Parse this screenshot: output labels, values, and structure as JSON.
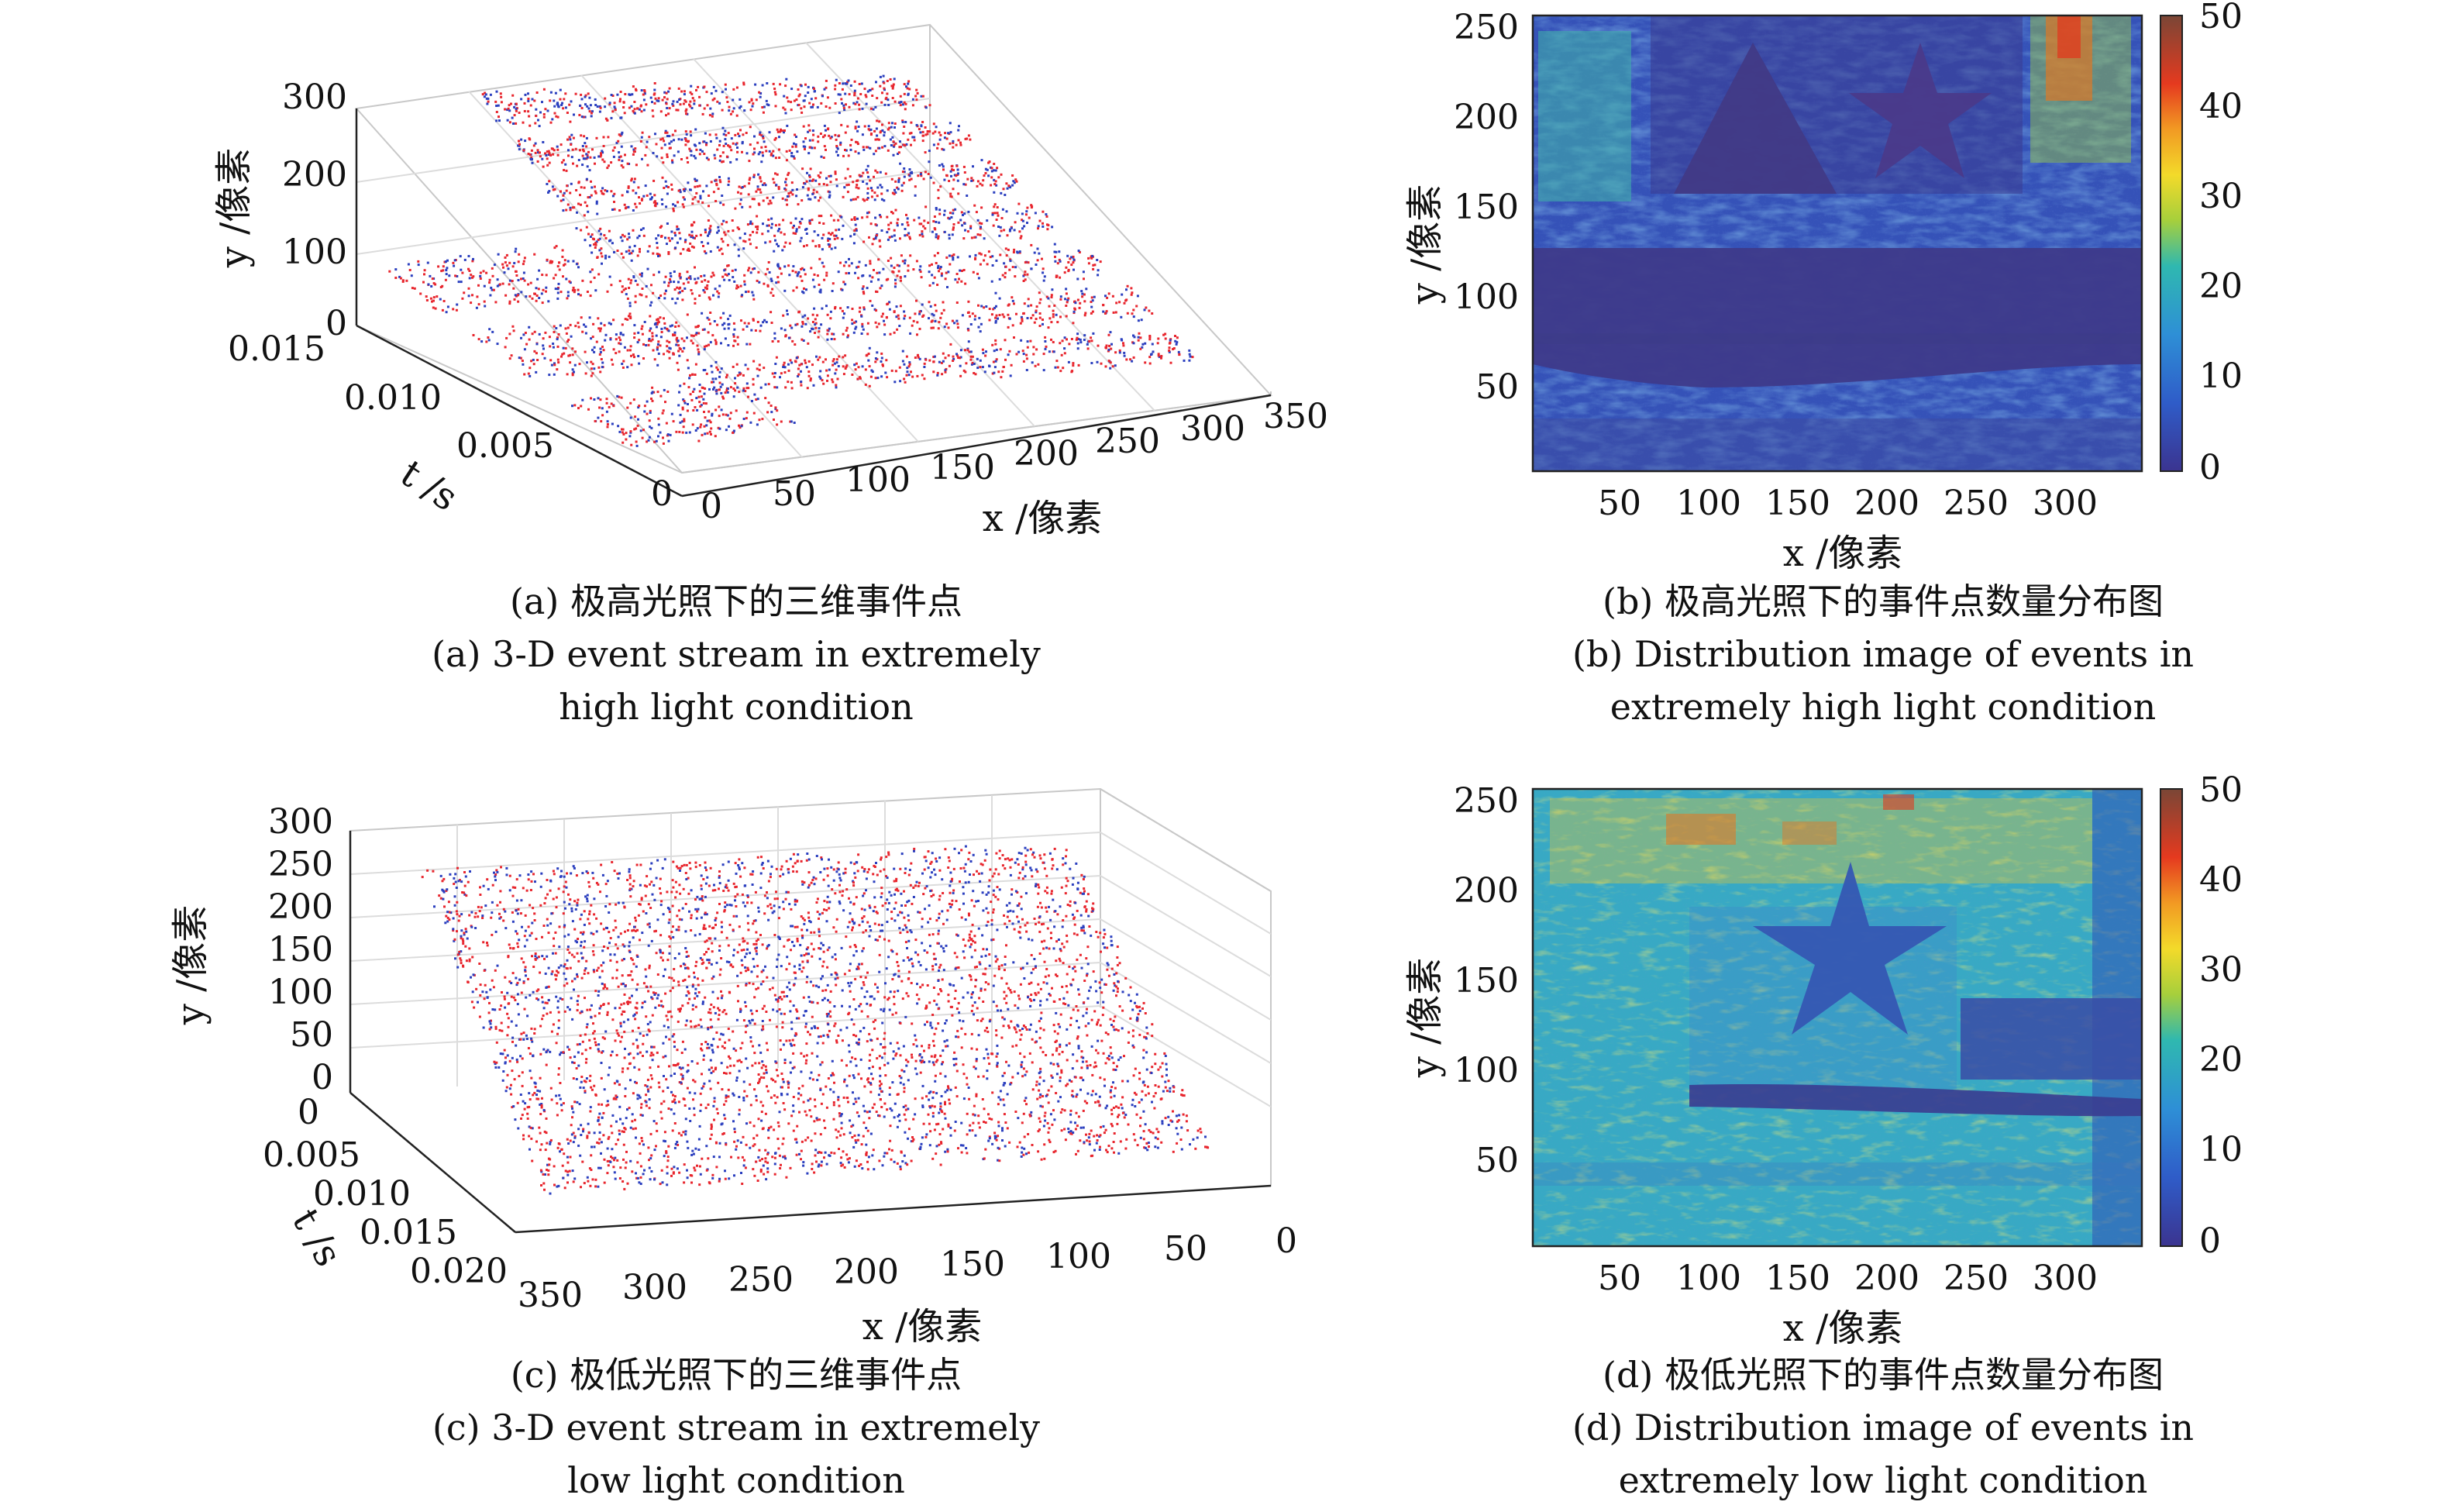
{
  "panels": {
    "a": {
      "caption_cn": "(a) 极高光照下的三维事件点",
      "caption_en_1": "(a) 3-D event stream in extremely",
      "caption_en_2": "high light condition"
    },
    "b": {
      "caption_cn": "(b) 极高光照下的事件点数量分布图",
      "caption_en_1": "(b) Distribution image of events in",
      "caption_en_2": "extremely high light condition"
    },
    "c": {
      "caption_cn": "(c) 极低光照下的三维事件点",
      "caption_en_1": "(c) 3-D event stream in extremely",
      "caption_en_2": "low light condition"
    },
    "d": {
      "caption_cn": "(d) 极低光照下的事件点数量分布图",
      "caption_en_1": "(d) Distribution image of events in",
      "caption_en_2": "extremely low light condition"
    }
  },
  "colors": {
    "on_event": "#e8262e",
    "off_event": "#2b3fbf",
    "box": "#c8c8c8"
  },
  "chart_data": [
    {
      "panel": "a",
      "type": "scatter",
      "xlabel": "x /像素",
      "ylabel": "y /像素",
      "zlabel": "t /s",
      "x_ticks": [
        "0",
        "50",
        "100",
        "150",
        "200",
        "250",
        "300",
        "350"
      ],
      "y_ticks": [
        "0",
        "100",
        "200",
        "300"
      ],
      "t_ticks": [
        "0",
        "0.005",
        "0.010",
        "0.015"
      ],
      "xlim": [
        0,
        350
      ],
      "ylim": [
        0,
        300
      ],
      "tlim": [
        0,
        0.015
      ],
      "series": [
        {
          "polarity": "on",
          "color": "#e8262e"
        },
        {
          "polarity": "off",
          "color": "#2b3fbf"
        }
      ]
    },
    {
      "panel": "b",
      "type": "heatmap",
      "xlabel": "x /像素",
      "ylabel": "y /像素",
      "x_ticks": [
        "50",
        "100",
        "150",
        "200",
        "250",
        "300"
      ],
      "y_ticks": [
        "50",
        "100",
        "150",
        "200",
        "250"
      ],
      "colorbar_ticks": [
        "0",
        "10",
        "20",
        "30",
        "40",
        "50"
      ],
      "xlim": [
        0,
        346
      ],
      "ylim": [
        0,
        260
      ],
      "clim": [
        0,
        50
      ]
    },
    {
      "panel": "c",
      "type": "scatter",
      "xlabel": "x /像素",
      "ylabel": "y /像素",
      "zlabel": "t /s",
      "x_ticks": [
        "350",
        "300",
        "250",
        "200",
        "150",
        "100",
        "50",
        "0"
      ],
      "y_ticks": [
        "0",
        "50",
        "100",
        "150",
        "200",
        "250",
        "300"
      ],
      "t_ticks": [
        "0",
        "0.005",
        "0.010",
        "0.015",
        "0.020"
      ],
      "xlim": [
        0,
        350
      ],
      "ylim": [
        0,
        300
      ],
      "tlim": [
        0,
        0.02
      ],
      "series": [
        {
          "polarity": "on",
          "color": "#e8262e"
        },
        {
          "polarity": "off",
          "color": "#2b3fbf"
        }
      ]
    },
    {
      "panel": "d",
      "type": "heatmap",
      "xlabel": "x /像素",
      "ylabel": "y /像素",
      "x_ticks": [
        "50",
        "100",
        "150",
        "200",
        "250",
        "300"
      ],
      "y_ticks": [
        "50",
        "100",
        "150",
        "200",
        "250"
      ],
      "colorbar_ticks": [
        "0",
        "10",
        "20",
        "30",
        "40",
        "50"
      ],
      "xlim": [
        0,
        346
      ],
      "ylim": [
        0,
        260
      ],
      "clim": [
        0,
        50
      ]
    }
  ]
}
